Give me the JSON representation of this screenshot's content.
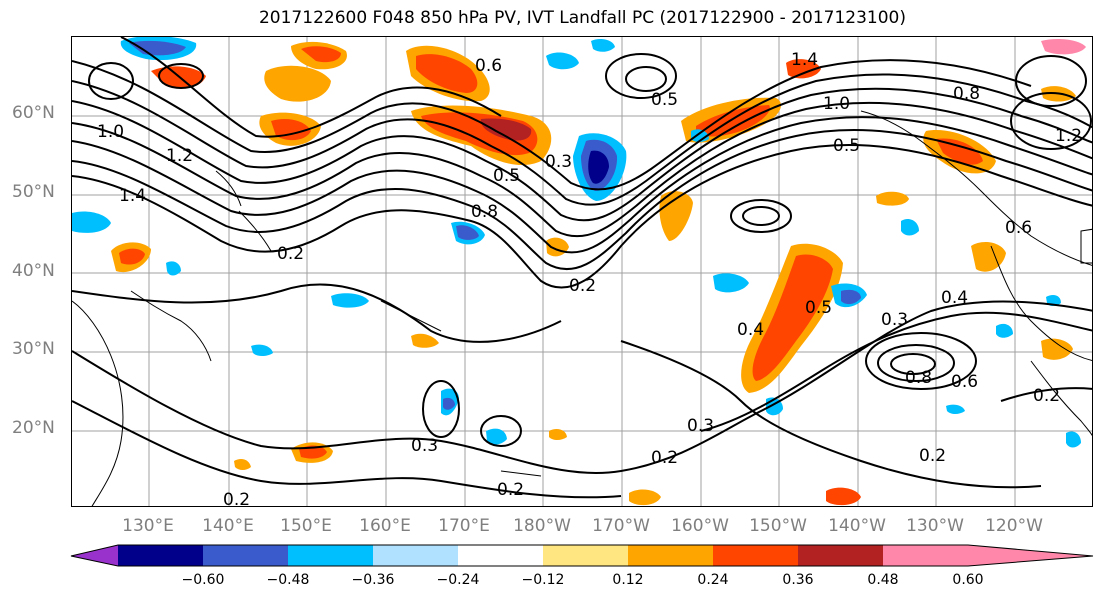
{
  "title": "2017122600 F048 850 hPa PV, IVT Landfall PC (2017122900 - 2017123100)",
  "lat_labels": [
    "60°N",
    "50°N",
    "40°N",
    "30°N",
    "20°N"
  ],
  "lon_labels": [
    "130°E",
    "140°E",
    "150°E",
    "160°E",
    "170°E",
    "180°W",
    "170°W",
    "160°W",
    "150°W",
    "140°W",
    "130°W",
    "120°W"
  ],
  "contour_labels": [
    "1.0",
    "1.2",
    "1.4",
    "0.2",
    "0.8",
    "0.6",
    "0.5",
    "0.3",
    "0.2",
    "1.4",
    "1.0",
    "0.8",
    "0.6",
    "0.5",
    "1.2",
    "0.3",
    "0.4",
    "0.5",
    "0.8",
    "0.2",
    "0.6",
    "0.3",
    "0.3",
    "0.2",
    "0.2",
    "0.2",
    "0.4",
    "0.5",
    "0.2"
  ],
  "colorbar": {
    "ticks": [
      "−0.60",
      "−0.48",
      "−0.36",
      "−0.24",
      "−0.12",
      "0.12",
      "0.24",
      "0.36",
      "0.48",
      "0.60"
    ],
    "colors": [
      "#9932CC",
      "#00008B",
      "#3A5BCB",
      "#00BFFF",
      "#B0E2FF",
      "#FFFFFF",
      "#FFE680",
      "#FFA500",
      "#FF4500",
      "#B22222",
      "#FF88AA"
    ]
  }
}
